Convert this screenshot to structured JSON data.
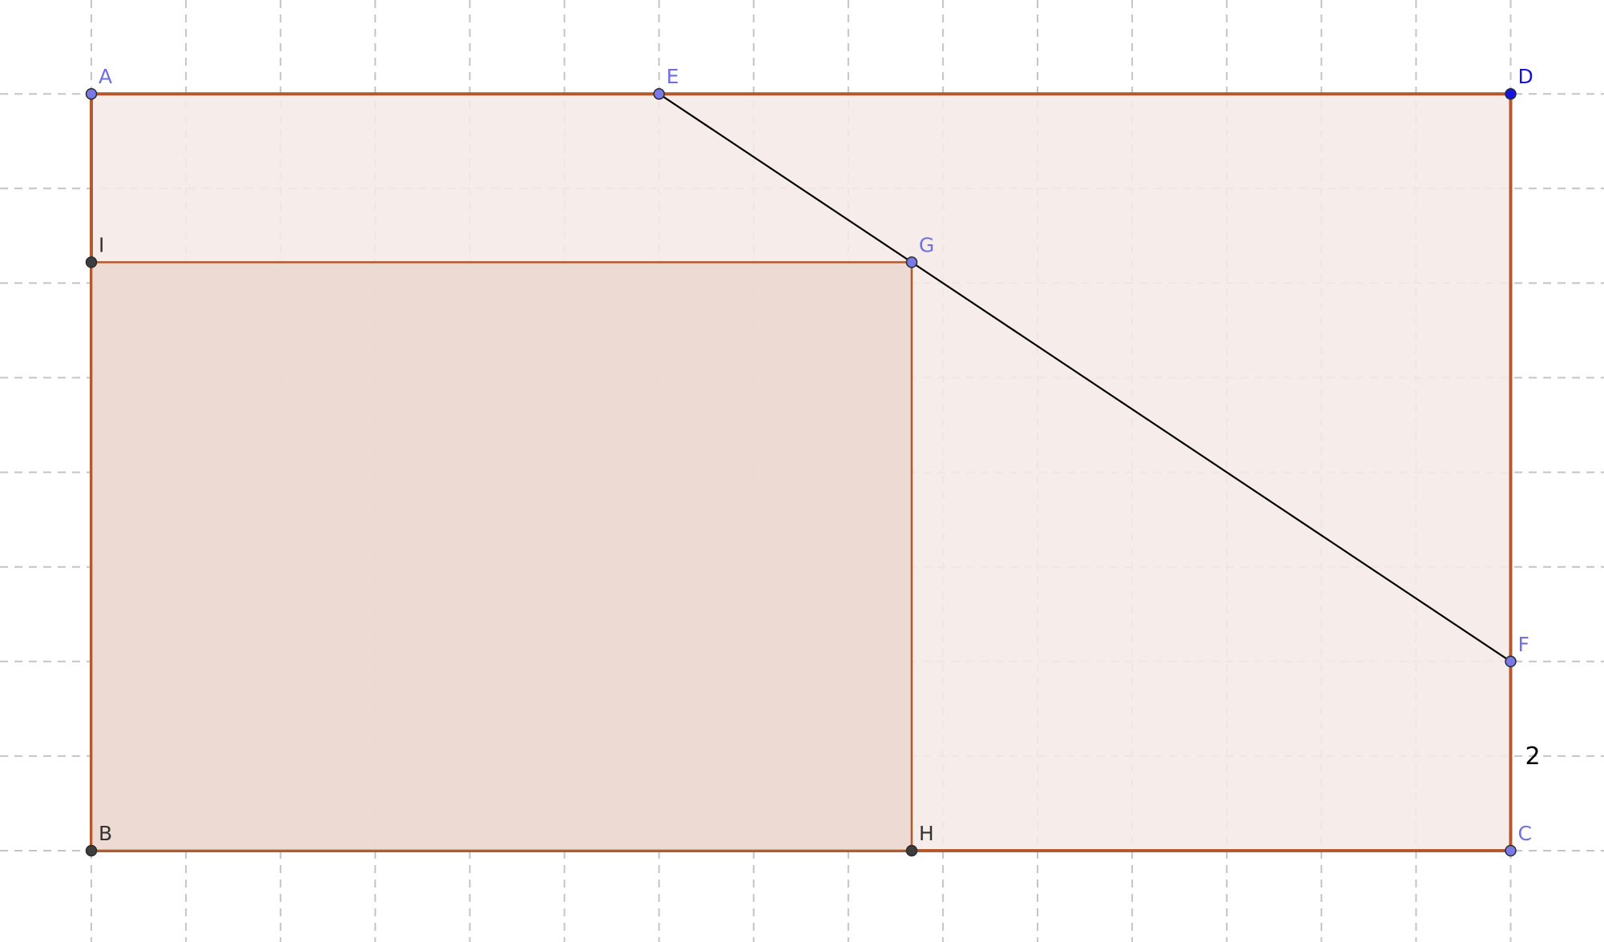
{
  "diagram": {
    "grid": {
      "visible": true,
      "style": "dashed",
      "color": "#c4c4c4"
    },
    "colors": {
      "region_fill": "#f5e9e6",
      "inner_fill": "#ead7cf",
      "edge": "#b25a2e",
      "segment": "#000000",
      "free_point": "#7a7ae6",
      "fixed_point": "#3d3d3d",
      "selected_point": "#1515e0",
      "free_label": "#7070e0",
      "fixed_label": "#333333",
      "selected_label": "#1515d8"
    },
    "points": [
      {
        "id": "A",
        "label": "A",
        "x": 0,
        "y": 8,
        "kind": "free"
      },
      {
        "id": "E",
        "label": "E",
        "x": 6,
        "y": 8,
        "kind": "free"
      },
      {
        "id": "D",
        "label": "D",
        "x": 15,
        "y": 8,
        "kind": "selected"
      },
      {
        "id": "I",
        "label": "I",
        "x": 0,
        "y": 6.22,
        "kind": "fixed"
      },
      {
        "id": "G",
        "label": "G",
        "x": 8.67,
        "y": 6.22,
        "kind": "free"
      },
      {
        "id": "F",
        "label": "F",
        "x": 15,
        "y": 2,
        "kind": "free"
      },
      {
        "id": "B",
        "label": "B",
        "x": 0,
        "y": 0,
        "kind": "fixed"
      },
      {
        "id": "H",
        "label": "H",
        "x": 8.67,
        "y": 0,
        "kind": "fixed"
      },
      {
        "id": "C",
        "label": "C",
        "x": 15,
        "y": 0,
        "kind": "free"
      }
    ],
    "polygons": [
      {
        "id": "rect-ABCD",
        "vertices": [
          "A",
          "B",
          "C",
          "D"
        ],
        "fill": "region"
      },
      {
        "id": "rect-BHGI",
        "vertices": [
          "I",
          "B",
          "H",
          "G"
        ],
        "fill": "inner"
      }
    ],
    "segments": [
      {
        "id": "EF",
        "from": "E",
        "to": "F"
      }
    ],
    "measures": [
      {
        "id": "FC-length",
        "text": "2",
        "from": "F",
        "to": "C"
      }
    ]
  }
}
